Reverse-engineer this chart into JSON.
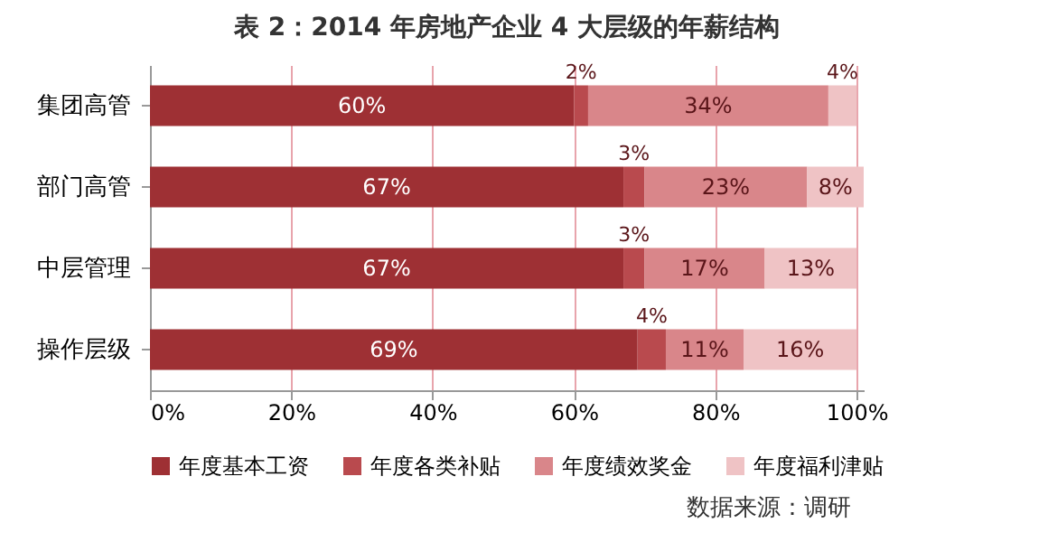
{
  "chart_data": {
    "type": "bar",
    "orientation": "horizontal",
    "stacked": true,
    "title": "表 2：2014 年房地产企业 4 大层级的年薪结构",
    "categories": [
      "集团高管",
      "部门高管",
      "中层管理",
      "操作层级"
    ],
    "series": [
      {
        "name": "年度基本工资",
        "color": "#9e3034",
        "values": [
          60,
          67,
          67,
          69
        ],
        "value_labels": [
          "60%",
          "67%",
          "67%",
          "69%"
        ]
      },
      {
        "name": "年度各类补贴",
        "color": "#b94a4e",
        "values": [
          2,
          3,
          3,
          4
        ],
        "value_labels": [
          "2%",
          "3%",
          "3%",
          "4%"
        ]
      },
      {
        "name": "年度绩效奖金",
        "color": "#d9868a",
        "values": [
          34,
          23,
          17,
          11
        ],
        "value_labels": [
          "34%",
          "23%",
          "17%",
          "11%"
        ]
      },
      {
        "name": "年度福利津贴",
        "color": "#efc3c5",
        "values": [
          4,
          8,
          13,
          16
        ],
        "value_labels": [
          "4%",
          "8%",
          "13%",
          "16%"
        ]
      }
    ],
    "xlim": [
      0,
      101
    ],
    "xticks": [
      {
        "value": 0,
        "label": "0%"
      },
      {
        "value": 20,
        "label": "20%"
      },
      {
        "value": 40,
        "label": "40%"
      },
      {
        "value": 60,
        "label": "60%"
      },
      {
        "value": 80,
        "label": "80%"
      },
      {
        "value": 100,
        "label": "100%"
      }
    ],
    "grid": "x",
    "legend": "bottom",
    "annotations": [
      "数据来源：调研"
    ]
  }
}
